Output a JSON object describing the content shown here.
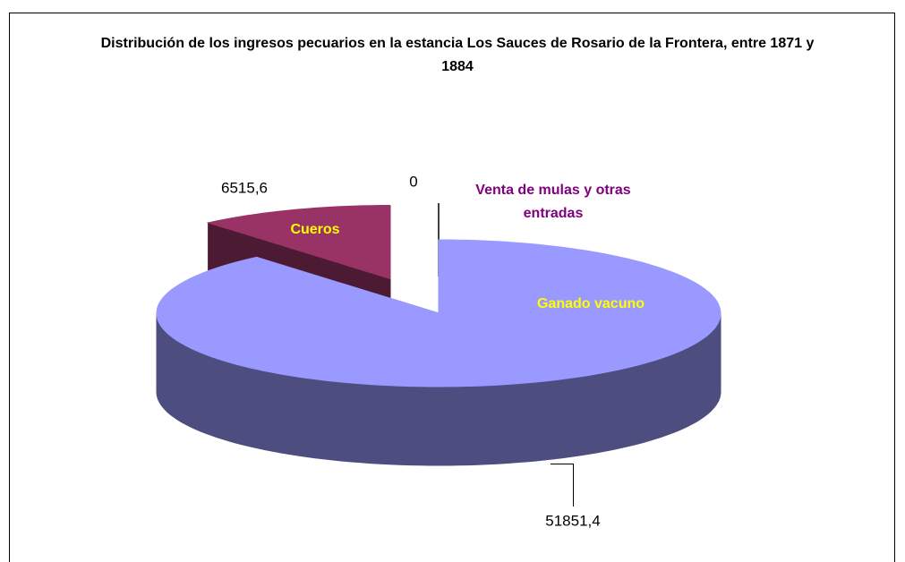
{
  "chart_data": {
    "type": "pie3d",
    "title": "Distribución de los ingresos pecuarios en la estancia Los Sauces de Rosario de la Frontera, entre 1871 y 1884",
    "categories": [
      "Ganado vacuno",
      "Cueros",
      "Venta de mulas y otras entradas"
    ],
    "values": [
      51851.4,
      6515.6,
      0
    ],
    "value_labels": [
      "51851,4",
      "6515,6",
      "0"
    ],
    "colors": [
      "#9999ff",
      "#993366",
      "#ffffcc"
    ],
    "side_colors": [
      "#4d4d80",
      "#4d1a33",
      "#80806a"
    ]
  }
}
